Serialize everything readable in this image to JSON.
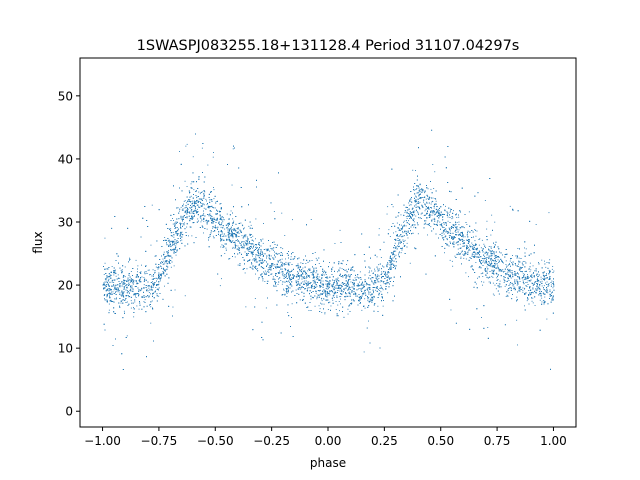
{
  "chart_data": {
    "type": "scatter",
    "title": "1SWASPJ083255.18+131128.4 Period 31107.04297s",
    "xlabel": "phase",
    "ylabel": "flux",
    "xlim": [
      -1.1,
      1.1
    ],
    "ylim": [
      -2.5,
      56
    ],
    "xticks": [
      -1.0,
      -0.75,
      -0.5,
      -0.25,
      0.0,
      0.25,
      0.5,
      0.75,
      1.0
    ],
    "xtick_labels": [
      "−1.00",
      "−0.75",
      "−0.50",
      "−0.25",
      "0.00",
      "0.25",
      "0.50",
      "0.75",
      "1.00"
    ],
    "yticks": [
      0,
      10,
      20,
      30,
      40,
      50
    ],
    "ytick_labels": [
      "0",
      "10",
      "20",
      "30",
      "40",
      "50"
    ],
    "grid": false,
    "marker_color": "#1f77b4",
    "phase_folded": true,
    "light_curve_profile": {
      "phase": [
        -1.0,
        -0.9,
        -0.8,
        -0.75,
        -0.7,
        -0.65,
        -0.6,
        -0.55,
        -0.5,
        -0.4,
        -0.3,
        -0.2,
        -0.1,
        0.0,
        0.1,
        0.2,
        0.25,
        0.3,
        0.35,
        0.4,
        0.45,
        0.5,
        0.6,
        0.7,
        0.8,
        0.9,
        1.0
      ],
      "flux": [
        20,
        19.5,
        19.5,
        21,
        26,
        30,
        33,
        32,
        30,
        27,
        24,
        22,
        20.5,
        20,
        19.5,
        19.5,
        21,
        26,
        30,
        33,
        32,
        30,
        27,
        24,
        22,
        20.5,
        20
      ]
    },
    "scatter_sd": 1.8,
    "n_points": 9000
  }
}
